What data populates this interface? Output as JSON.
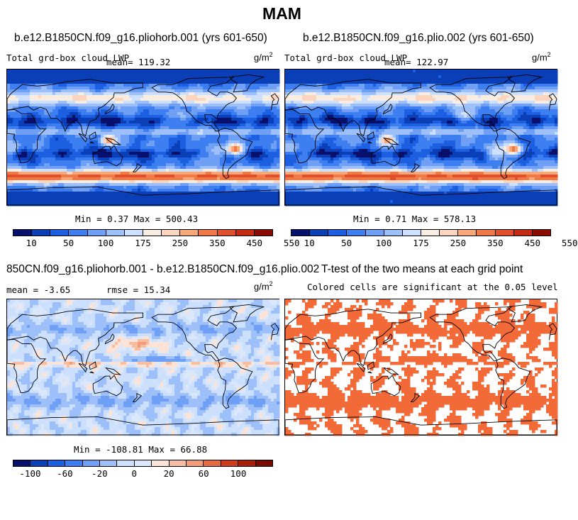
{
  "figure": {
    "title": "MAM"
  },
  "colors": {
    "lwp_scale": [
      "#08106e",
      "#0a3fb8",
      "#1c5fe0",
      "#3d7ff0",
      "#6fa0f5",
      "#9ec0fa",
      "#cce0fd",
      "#f7ede2",
      "#fbd5bf",
      "#f8a878",
      "#f07a47",
      "#e0502a",
      "#c42a12",
      "#8c0c03"
    ],
    "diff_scale": [
      "#08106e",
      "#0a3fb8",
      "#1c5fe0",
      "#3d7ff0",
      "#6fa0f5",
      "#9ec0fa",
      "#cce0fd",
      "#dbe8fb",
      "#fce3d8",
      "#f6bda3",
      "#f39c78",
      "#e86a41",
      "#d03c1b",
      "#a81f08",
      "#7a0a00"
    ],
    "significant": "#f26a38",
    "map_bg": "#ffffff"
  },
  "chart_data": [
    {
      "type": "heatmap",
      "title": "b.e12.B1850CN.f09_g16.pliohorb.001 (yrs 601-650)",
      "left_label": "Total grd-box cloud LWP",
      "center_label": "mean= 119.32",
      "units_base": "g/m",
      "units_exp": "2",
      "stats": "Min =    0.37 Max = 500.43",
      "colorbar_ticks": [
        "10",
        "50",
        "100",
        "175",
        "250",
        "350",
        "450",
        "550"
      ],
      "min": 0.37,
      "max": 500.43,
      "mean": 119.32
    },
    {
      "type": "heatmap",
      "title": "b.e12.B1850CN.f09_g16.plio.002 (yrs 601-650)",
      "left_label": "Total grd-box cloud LWP",
      "center_label": "mean= 122.97",
      "units_base": "g/m",
      "units_exp": "2",
      "stats": "Min =    0.71 Max = 578.13",
      "colorbar_ticks": [
        "10",
        "50",
        "100",
        "175",
        "250",
        "350",
        "450",
        "550"
      ],
      "min": 0.71,
      "max": 578.13,
      "mean": 122.97
    },
    {
      "type": "heatmap",
      "title": "850CN.f09_g16.pliohorb.001 - b.e12.B1850CN.f09_g16.plio.002",
      "left_label": "mean =   -3.65",
      "center_label": "rmse =  15.34",
      "units_base": "g/m",
      "units_exp": "2",
      "stats": "Min = -108.81 Max =  66.88",
      "colorbar_ticks": [
        "-100",
        "-60",
        "-20",
        "0",
        "20",
        "60",
        "100"
      ],
      "min": -108.81,
      "max": 66.88,
      "mean": -3.65,
      "rmse": 15.34
    },
    {
      "type": "heatmap",
      "title": "T-test of the two means at each grid point",
      "center_label": "Colored cells are significant at the 0.05 level",
      "significance_level": 0.05
    }
  ]
}
